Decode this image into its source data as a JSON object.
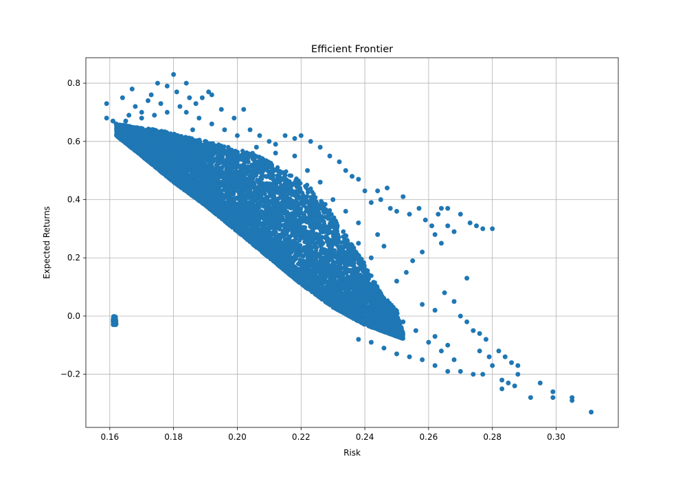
{
  "chart_data": {
    "type": "scatter",
    "title": "Efficient Frontier",
    "xlabel": "Risk",
    "ylabel": "Expected Returns",
    "xlim": [
      0.1525,
      0.3195
    ],
    "ylim": [
      -0.3825,
      0.8875
    ],
    "grid": true,
    "point_color": "#1f77b4",
    "x_ticks": [
      "0.16",
      "0.18",
      "0.20",
      "0.22",
      "0.24",
      "0.26",
      "0.28",
      "0.30"
    ],
    "y_ticks": [
      "−0.2",
      "0.0",
      "0.2",
      "0.4",
      "0.6",
      "0.8"
    ],
    "series": [
      {
        "points": [
          [
            0.159,
            0.73
          ],
          [
            0.159,
            0.68
          ],
          [
            0.161,
            0.67
          ],
          [
            0.162,
            0.66
          ],
          [
            0.164,
            0.75
          ],
          [
            0.166,
            0.69
          ],
          [
            0.167,
            0.78
          ],
          [
            0.168,
            0.72
          ],
          [
            0.17,
            0.7
          ],
          [
            0.172,
            0.74
          ],
          [
            0.173,
            0.76
          ],
          [
            0.175,
            0.8
          ],
          [
            0.176,
            0.73
          ],
          [
            0.178,
            0.79
          ],
          [
            0.18,
            0.83
          ],
          [
            0.181,
            0.77
          ],
          [
            0.182,
            0.72
          ],
          [
            0.184,
            0.8
          ],
          [
            0.185,
            0.75
          ],
          [
            0.187,
            0.73
          ],
          [
            0.189,
            0.75
          ],
          [
            0.191,
            0.77
          ],
          [
            0.192,
            0.76
          ],
          [
            0.195,
            0.71
          ],
          [
            0.199,
            0.68
          ],
          [
            0.202,
            0.71
          ],
          [
            0.204,
            0.64
          ],
          [
            0.207,
            0.62
          ],
          [
            0.21,
            0.6
          ],
          [
            0.212,
            0.59
          ],
          [
            0.215,
            0.62
          ],
          [
            0.218,
            0.61
          ],
          [
            0.22,
            0.62
          ],
          [
            0.223,
            0.6
          ],
          [
            0.226,
            0.58
          ],
          [
            0.229,
            0.55
          ],
          [
            0.232,
            0.53
          ],
          [
            0.234,
            0.5
          ],
          [
            0.236,
            0.48
          ],
          [
            0.238,
            0.47
          ],
          [
            0.24,
            0.43
          ],
          [
            0.242,
            0.39
          ],
          [
            0.244,
            0.43
          ],
          [
            0.245,
            0.4
          ],
          [
            0.247,
            0.44
          ],
          [
            0.248,
            0.37
          ],
          [
            0.25,
            0.36
          ],
          [
            0.252,
            0.41
          ],
          [
            0.254,
            0.35
          ],
          [
            0.257,
            0.37
          ],
          [
            0.259,
            0.33
          ],
          [
            0.261,
            0.31
          ],
          [
            0.263,
            0.35
          ],
          [
            0.264,
            0.37
          ],
          [
            0.266,
            0.37
          ],
          [
            0.266,
            0.31
          ],
          [
            0.268,
            0.29
          ],
          [
            0.27,
            0.35
          ],
          [
            0.273,
            0.32
          ],
          [
            0.275,
            0.31
          ],
          [
            0.277,
            0.3
          ],
          [
            0.28,
            0.3
          ],
          [
            0.264,
            0.25
          ],
          [
            0.262,
            0.28
          ],
          [
            0.258,
            0.22
          ],
          [
            0.255,
            0.19
          ],
          [
            0.253,
            0.15
          ],
          [
            0.272,
            0.13
          ],
          [
            0.265,
            0.08
          ],
          [
            0.268,
            0.05
          ],
          [
            0.27,
            0.0
          ],
          [
            0.272,
            -0.02
          ],
          [
            0.274,
            -0.05
          ],
          [
            0.276,
            -0.06
          ],
          [
            0.278,
            -0.08
          ],
          [
            0.276,
            -0.12
          ],
          [
            0.279,
            -0.14
          ],
          [
            0.28,
            -0.17
          ],
          [
            0.282,
            -0.12
          ],
          [
            0.284,
            -0.14
          ],
          [
            0.286,
            -0.16
          ],
          [
            0.288,
            -0.17
          ],
          [
            0.288,
            -0.2
          ],
          [
            0.283,
            -0.22
          ],
          [
            0.283,
            -0.25
          ],
          [
            0.285,
            -0.23
          ],
          [
            0.287,
            -0.24
          ],
          [
            0.292,
            -0.28
          ],
          [
            0.295,
            -0.23
          ],
          [
            0.299,
            -0.26
          ],
          [
            0.299,
            -0.28
          ],
          [
            0.305,
            -0.28
          ],
          [
            0.305,
            -0.29
          ],
          [
            0.311,
            -0.33
          ],
          [
            0.277,
            -0.2
          ],
          [
            0.274,
            -0.2
          ],
          [
            0.27,
            -0.19
          ],
          [
            0.266,
            -0.19
          ],
          [
            0.262,
            -0.17
          ],
          [
            0.258,
            -0.15
          ],
          [
            0.254,
            -0.14
          ],
          [
            0.25,
            -0.13
          ],
          [
            0.246,
            -0.11
          ],
          [
            0.242,
            -0.09
          ],
          [
            0.238,
            -0.08
          ],
          [
            0.262,
            -0.07
          ],
          [
            0.266,
            -0.1
          ],
          [
            0.258,
            0.04
          ],
          [
            0.262,
            0.02
          ],
          [
            0.25,
            0.12
          ],
          [
            0.246,
            0.24
          ],
          [
            0.244,
            0.28
          ],
          [
            0.238,
            0.32
          ],
          [
            0.234,
            0.36
          ],
          [
            0.23,
            0.4
          ],
          [
            0.226,
            0.46
          ],
          [
            0.222,
            0.5
          ],
          [
            0.218,
            0.55
          ],
          [
            0.212,
            0.56
          ],
          [
            0.206,
            0.58
          ],
          [
            0.2,
            0.62
          ],
          [
            0.196,
            0.64
          ],
          [
            0.192,
            0.66
          ],
          [
            0.188,
            0.68
          ],
          [
            0.184,
            0.7
          ],
          [
            0.178,
            0.7
          ],
          [
            0.174,
            0.69
          ],
          [
            0.17,
            0.68
          ],
          [
            0.165,
            0.67
          ],
          [
            0.163,
            0.65
          ],
          [
            0.232,
            0.2
          ],
          [
            0.236,
            0.15
          ],
          [
            0.24,
            0.1
          ],
          [
            0.244,
            0.06
          ],
          [
            0.248,
            0.02
          ],
          [
            0.252,
            -0.02
          ],
          [
            0.256,
            -0.05
          ],
          [
            0.26,
            -0.09
          ],
          [
            0.264,
            -0.12
          ],
          [
            0.268,
            -0.15
          ],
          [
            0.242,
            0.2
          ],
          [
            0.238,
            0.25
          ],
          [
            0.228,
            0.3
          ],
          [
            0.224,
            0.36
          ],
          [
            0.216,
            0.42
          ],
          [
            0.21,
            0.48
          ],
          [
            0.202,
            0.52
          ],
          [
            0.196,
            0.56
          ],
          [
            0.19,
            0.6
          ],
          [
            0.186,
            0.64
          ]
        ]
      }
    ],
    "dense_band": {
      "lower_edge": [
        [
          0.162,
          0.62
        ],
        [
          0.17,
          0.55
        ],
        [
          0.18,
          0.46
        ],
        [
          0.19,
          0.38
        ],
        [
          0.2,
          0.29
        ],
        [
          0.21,
          0.2
        ],
        [
          0.22,
          0.11
        ],
        [
          0.23,
          0.03
        ],
        [
          0.24,
          -0.03
        ]
      ],
      "upper_edge": [
        [
          0.162,
          0.66
        ],
        [
          0.175,
          0.64
        ],
        [
          0.19,
          0.6
        ],
        [
          0.205,
          0.56
        ],
        [
          0.215,
          0.5
        ],
        [
          0.222,
          0.45
        ],
        [
          0.228,
          0.38
        ],
        [
          0.234,
          0.28
        ],
        [
          0.24,
          0.18
        ],
        [
          0.245,
          0.08
        ],
        [
          0.25,
          0.02
        ],
        [
          0.252,
          -0.06
        ],
        [
          0.246,
          -0.08
        ],
        [
          0.24,
          -0.06
        ]
      ],
      "n_points": 9000
    }
  }
}
